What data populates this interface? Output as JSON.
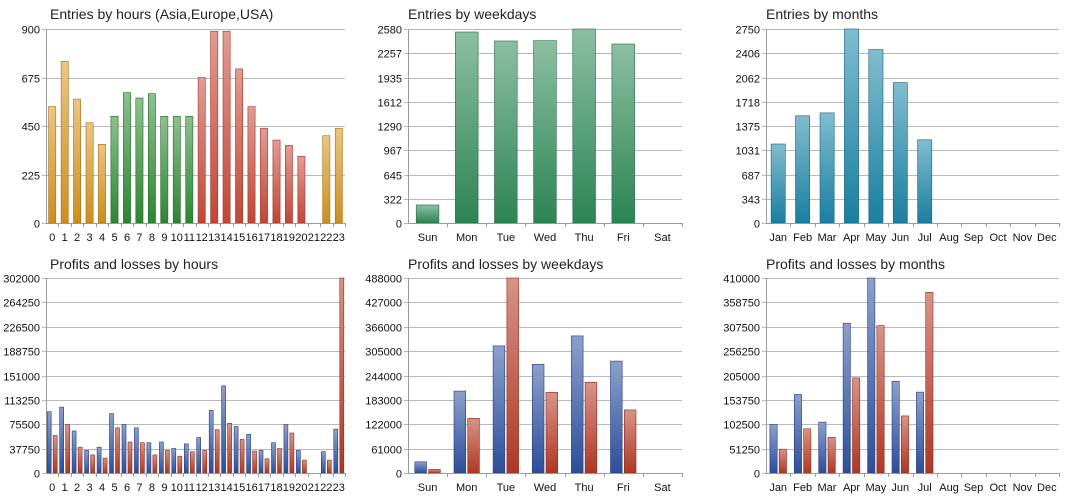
{
  "chart_data": [
    {
      "type": "bar",
      "title": "Entries by hours (Asia,Europe,USA)",
      "categories": [
        "0",
        "1",
        "2",
        "3",
        "4",
        "5",
        "6",
        "7",
        "8",
        "9",
        "10",
        "11",
        "12",
        "13",
        "14",
        "15",
        "16",
        "17",
        "18",
        "19",
        "20",
        "21",
        "22",
        "23"
      ],
      "yticks": [
        "0",
        "225",
        "450",
        "675",
        "900"
      ],
      "ylim": [
        0,
        900
      ],
      "series": [
        {
          "values": [
            540,
            750,
            575,
            465,
            365,
            495,
            605,
            580,
            600,
            495,
            495,
            495,
            675,
            890,
            890,
            715,
            540,
            440,
            385,
            360,
            310,
            0,
            405,
            440
          ]
        }
      ],
      "bar_colors": [
        "#d8951e",
        "#d8951e",
        "#d8951e",
        "#d8951e",
        "#d8951e",
        "#2f8c34",
        "#2f8c34",
        "#2f8c34",
        "#2f8c34",
        "#2f8c34",
        "#2f8c34",
        "#2f8c34",
        "#cc4a3a",
        "#cc4a3a",
        "#cc4a3a",
        "#cc4a3a",
        "#cc4a3a",
        "#cc4a3a",
        "#cc4a3a",
        "#cc4a3a",
        "#cc4a3a",
        "#d8951e",
        "#d8951e",
        "#d8951e"
      ]
    },
    {
      "type": "bar",
      "title": "Entries by weekdays",
      "categories": [
        "Sun",
        "Mon",
        "Tue",
        "Wed",
        "Thu",
        "Fri",
        "Sat"
      ],
      "yticks": [
        "0",
        "322",
        "645",
        "967",
        "1290",
        "1612",
        "1935",
        "2257",
        "2580"
      ],
      "ylim": [
        0,
        2580
      ],
      "series": [
        {
          "values": [
            240,
            2540,
            2420,
            2425,
            2580,
            2380,
            0
          ]
        }
      ],
      "bar_colors": [
        "#2e8b57"
      ]
    },
    {
      "type": "bar",
      "title": "Entries by months",
      "categories": [
        "Jan",
        "Feb",
        "Mar",
        "Apr",
        "May",
        "Jun",
        "Jul",
        "Aug",
        "Sep",
        "Oct",
        "Nov",
        "Dec"
      ],
      "yticks": [
        "0",
        "343",
        "687",
        "1031",
        "1375",
        "1718",
        "2062",
        "2406",
        "2750"
      ],
      "ylim": [
        0,
        2750
      ],
      "series": [
        {
          "values": [
            1120,
            1520,
            1560,
            2750,
            2460,
            1990,
            1180,
            0,
            0,
            0,
            0,
            0
          ]
        }
      ],
      "bar_colors": [
        "#1a86a8"
      ]
    },
    {
      "type": "bar",
      "title": "Profits and losses by hours",
      "categories": [
        "0",
        "1",
        "2",
        "3",
        "4",
        "5",
        "6",
        "7",
        "8",
        "9",
        "10",
        "11",
        "12",
        "13",
        "14",
        "15",
        "16",
        "17",
        "18",
        "19",
        "20",
        "21",
        "22",
        "23"
      ],
      "yticks": [
        "0",
        "37750",
        "75500",
        "113250",
        "151000",
        "188750",
        "226500",
        "264250",
        "302000"
      ],
      "ylim": [
        0,
        302000
      ],
      "series": [
        {
          "values": [
            95000,
            102000,
            65000,
            35000,
            40000,
            92000,
            75000,
            70000,
            47000,
            48000,
            38000,
            45000,
            55000,
            97000,
            135000,
            72000,
            60000,
            35000,
            47000,
            75000,
            35000,
            0,
            33000,
            68000
          ]
        },
        {
          "values": [
            58000,
            75000,
            40000,
            28000,
            23000,
            70000,
            48000,
            47000,
            28000,
            35000,
            26000,
            33000,
            35000,
            67000,
            77000,
            52000,
            34000,
            22000,
            38000,
            62000,
            20000,
            0,
            20000,
            302000
          ]
        }
      ],
      "series_colors": [
        "#2f52a3",
        "#b83a26"
      ]
    },
    {
      "type": "bar",
      "title": "Profits and losses by weekdays",
      "categories": [
        "Sun",
        "Mon",
        "Tue",
        "Wed",
        "Thu",
        "Fri",
        "Sat"
      ],
      "yticks": [
        "0",
        "61000",
        "122000",
        "183000",
        "244000",
        "305000",
        "366000",
        "427000",
        "488000"
      ],
      "ylim": [
        0,
        488000
      ],
      "series": [
        {
          "values": [
            28000,
            205000,
            318000,
            272000,
            343000,
            280000,
            0
          ]
        },
        {
          "values": [
            9000,
            137000,
            488000,
            202000,
            227000,
            158000,
            0
          ]
        }
      ],
      "series_colors": [
        "#2f52a3",
        "#b83a26"
      ]
    },
    {
      "type": "bar",
      "title": "Profits and losses by months",
      "categories": [
        "Jan",
        "Feb",
        "Mar",
        "Apr",
        "May",
        "Jun",
        "Jul",
        "Aug",
        "Sep",
        "Oct",
        "Nov",
        "Dec"
      ],
      "yticks": [
        "0",
        "51250",
        "102500",
        "153750",
        "205000",
        "256250",
        "307500",
        "358750",
        "410000"
      ],
      "ylim": [
        0,
        410000
      ],
      "series": [
        {
          "values": [
            102000,
            165000,
            107000,
            315000,
            410000,
            193000,
            170000,
            0,
            0,
            0,
            0,
            0
          ]
        },
        {
          "values": [
            50000,
            93000,
            75000,
            200000,
            310000,
            120000,
            380000,
            0,
            0,
            0,
            0,
            0
          ]
        }
      ],
      "series_colors": [
        "#2f52a3",
        "#b83a26"
      ]
    }
  ]
}
